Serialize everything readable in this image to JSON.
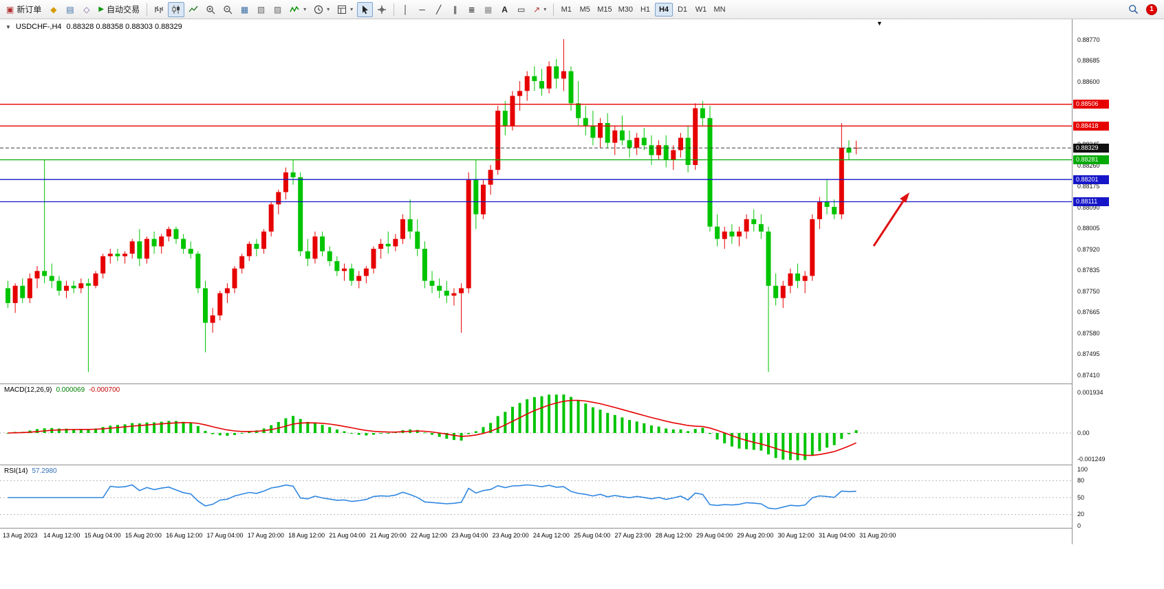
{
  "toolbar": {
    "new_order_label": "新订单",
    "auto_trading_label": "自动交易",
    "timeframes": [
      "M1",
      "M5",
      "M15",
      "M30",
      "H1",
      "H4",
      "D1",
      "W1",
      "MN"
    ],
    "active_timeframe": "H4",
    "notification_count": "1"
  },
  "icons": {
    "collapse": "▼",
    "chart_shift": "▼",
    "dropdown": "▾",
    "new_order": "▣",
    "market_watch": "◆",
    "data_window": "▤",
    "navigator": "◇",
    "play": "▶",
    "tile_windows": "▦",
    "new_chart": "▧",
    "profiles": "▨",
    "crosshair": "+",
    "vline": "│",
    "hline": "─",
    "trendline": "╱",
    "channel": "∥",
    "fibonacci": "≣",
    "grid": "▦",
    "text": "A",
    "label": "▭",
    "arrows": "↗"
  },
  "chart": {
    "symbol_period": "USDCHF-,H4",
    "ohlc_text": "0.88328 0.88358 0.88303 0.88329",
    "ohlc": {
      "open": "0.88328",
      "high": "0.88358",
      "low": "0.88303",
      "close": "0.88329"
    },
    "price_axis": [
      "0.88770",
      "0.88685",
      "0.88600",
      "0.88345",
      "0.88260",
      "0.88175",
      "0.88090",
      "0.88005",
      "0.87920",
      "0.87835",
      "0.87750",
      "0.87665",
      "0.87580",
      "0.87495",
      "0.87410"
    ],
    "levels": [
      {
        "price": "0.88506",
        "color": "#e60000",
        "current": false
      },
      {
        "price": "0.88418",
        "color": "#e60000",
        "current": false
      },
      {
        "price": "0.88329",
        "color": "#3a3a3a",
        "current": true
      },
      {
        "price": "0.88281",
        "color": "#00aa00",
        "current": false
      },
      {
        "price": "0.88201",
        "color": "#1616c8",
        "current": false
      },
      {
        "price": "0.88111",
        "color": "#1616c8",
        "current": false
      }
    ],
    "colors": {
      "bull": "#e60000",
      "bear": "#00c400"
    },
    "time_axis": [
      "13 Aug 2023",
      "14 Aug 12:00",
      "15 Aug 04:00",
      "15 Aug 20:00",
      "16 Aug 12:00",
      "17 Aug 04:00",
      "17 Aug 20:00",
      "18 Aug 12:00",
      "21 Aug 04:00",
      "21 Aug 20:00",
      "22 Aug 12:00",
      "23 Aug 04:00",
      "23 Aug 20:00",
      "24 Aug 12:00",
      "25 Aug 04:00",
      "27 Aug 23:00",
      "28 Aug 12:00",
      "29 Aug 04:00",
      "29 Aug 20:00",
      "30 Aug 12:00",
      "31 Aug 04:00",
      "31 Aug 20:00"
    ],
    "candles": [
      [
        0.8776,
        0.8779,
        0.8768,
        0.877
      ],
      [
        0.877,
        0.8778,
        0.8766,
        0.8777
      ],
      [
        0.8777,
        0.878,
        0.877,
        0.8772
      ],
      [
        0.8772,
        0.8782,
        0.877,
        0.878
      ],
      [
        0.878,
        0.8785,
        0.8776,
        0.8783
      ],
      [
        0.8783,
        0.8828,
        0.8778,
        0.8781
      ],
      [
        0.8781,
        0.8786,
        0.8776,
        0.8779
      ],
      [
        0.8779,
        0.8781,
        0.8773,
        0.8775
      ],
      [
        0.8775,
        0.8779,
        0.8772,
        0.8777
      ],
      [
        0.8777,
        0.8779,
        0.8774,
        0.8776
      ],
      [
        0.8776,
        0.878,
        0.8774,
        0.8778
      ],
      [
        0.8778,
        0.878,
        0.8742,
        0.8777
      ],
      [
        0.8777,
        0.8783,
        0.8776,
        0.8782
      ],
      [
        0.8782,
        0.879,
        0.878,
        0.8789
      ],
      [
        0.8789,
        0.8792,
        0.8786,
        0.879
      ],
      [
        0.879,
        0.8792,
        0.8787,
        0.8789
      ],
      [
        0.8789,
        0.8791,
        0.8786,
        0.879
      ],
      [
        0.879,
        0.8796,
        0.8788,
        0.8795
      ],
      [
        0.8795,
        0.88,
        0.8785,
        0.8788
      ],
      [
        0.8788,
        0.8797,
        0.8786,
        0.8796
      ],
      [
        0.8796,
        0.8799,
        0.879,
        0.8793
      ],
      [
        0.8793,
        0.8798,
        0.879,
        0.8797
      ],
      [
        0.8797,
        0.8801,
        0.8795,
        0.88
      ],
      [
        0.88,
        0.8801,
        0.8794,
        0.8796
      ],
      [
        0.8796,
        0.8798,
        0.879,
        0.8792
      ],
      [
        0.8792,
        0.8795,
        0.8788,
        0.879
      ],
      [
        0.879,
        0.8791,
        0.8774,
        0.8776
      ],
      [
        0.8776,
        0.8779,
        0.875,
        0.8762
      ],
      [
        0.8762,
        0.8768,
        0.8758,
        0.8765
      ],
      [
        0.8765,
        0.8775,
        0.8763,
        0.8774
      ],
      [
        0.8774,
        0.8778,
        0.877,
        0.8776
      ],
      [
        0.8776,
        0.8785,
        0.8774,
        0.8784
      ],
      [
        0.8784,
        0.879,
        0.8782,
        0.8789
      ],
      [
        0.8789,
        0.8795,
        0.8787,
        0.8794
      ],
      [
        0.8794,
        0.8796,
        0.8789,
        0.8792
      ],
      [
        0.8792,
        0.88,
        0.879,
        0.8799
      ],
      [
        0.8799,
        0.8811,
        0.8797,
        0.881
      ],
      [
        0.881,
        0.8816,
        0.8806,
        0.8815
      ],
      [
        0.8815,
        0.8825,
        0.8812,
        0.8823
      ],
      [
        0.8823,
        0.8828,
        0.8818,
        0.8821
      ],
      [
        0.8821,
        0.8823,
        0.8789,
        0.8791
      ],
      [
        0.8791,
        0.8796,
        0.8785,
        0.8788
      ],
      [
        0.8788,
        0.8799,
        0.8786,
        0.8797
      ],
      [
        0.8797,
        0.8799,
        0.8789,
        0.8791
      ],
      [
        0.8791,
        0.8793,
        0.8785,
        0.8787
      ],
      [
        0.8787,
        0.8789,
        0.8781,
        0.8783
      ],
      [
        0.8783,
        0.8786,
        0.8779,
        0.8784
      ],
      [
        0.8784,
        0.8786,
        0.8777,
        0.8779
      ],
      [
        0.8779,
        0.8783,
        0.8776,
        0.8781
      ],
      [
        0.8781,
        0.8785,
        0.8778,
        0.8784
      ],
      [
        0.8784,
        0.8793,
        0.8782,
        0.8792
      ],
      [
        0.8792,
        0.8796,
        0.8788,
        0.8794
      ],
      [
        0.8794,
        0.8799,
        0.879,
        0.8793
      ],
      [
        0.8793,
        0.8798,
        0.8791,
        0.8796
      ],
      [
        0.8796,
        0.8806,
        0.8794,
        0.8804
      ],
      [
        0.8804,
        0.8812,
        0.8796,
        0.8799
      ],
      [
        0.8799,
        0.8804,
        0.8789,
        0.8792
      ],
      [
        0.8792,
        0.8795,
        0.8776,
        0.8779
      ],
      [
        0.8779,
        0.8783,
        0.8774,
        0.8777
      ],
      [
        0.8777,
        0.878,
        0.8772,
        0.8775
      ],
      [
        0.8775,
        0.8779,
        0.877,
        0.8773
      ],
      [
        0.8773,
        0.8776,
        0.8769,
        0.8774
      ],
      [
        0.8774,
        0.8778,
        0.8758,
        0.8776
      ],
      [
        0.8776,
        0.8823,
        0.8774,
        0.882
      ],
      [
        0.882,
        0.8828,
        0.88,
        0.8806
      ],
      [
        0.8806,
        0.882,
        0.8804,
        0.8818
      ],
      [
        0.8818,
        0.8826,
        0.8814,
        0.8824
      ],
      [
        0.8824,
        0.885,
        0.8822,
        0.8848
      ],
      [
        0.8848,
        0.8852,
        0.8838,
        0.8842
      ],
      [
        0.8842,
        0.8856,
        0.884,
        0.8854
      ],
      [
        0.8854,
        0.886,
        0.8848,
        0.8856
      ],
      [
        0.8856,
        0.8864,
        0.8852,
        0.8862
      ],
      [
        0.8862,
        0.8866,
        0.8856,
        0.886
      ],
      [
        0.886,
        0.8865,
        0.8854,
        0.8857
      ],
      [
        0.8857,
        0.8868,
        0.8855,
        0.8866
      ],
      [
        0.8866,
        0.8869,
        0.8857,
        0.8861
      ],
      [
        0.8861,
        0.8877,
        0.8856,
        0.8864
      ],
      [
        0.8864,
        0.8866,
        0.8848,
        0.8851
      ],
      [
        0.8851,
        0.886,
        0.8842,
        0.8845
      ],
      [
        0.8845,
        0.885,
        0.8838,
        0.8842
      ],
      [
        0.8842,
        0.8848,
        0.8834,
        0.8837
      ],
      [
        0.8837,
        0.8845,
        0.8833,
        0.8843
      ],
      [
        0.8843,
        0.8847,
        0.8833,
        0.8835
      ],
      [
        0.8835,
        0.8842,
        0.883,
        0.884
      ],
      [
        0.884,
        0.8846,
        0.8834,
        0.8836
      ],
      [
        0.8836,
        0.884,
        0.8829,
        0.8833
      ],
      [
        0.8833,
        0.8839,
        0.883,
        0.8837
      ],
      [
        0.8837,
        0.8841,
        0.8832,
        0.8834
      ],
      [
        0.8834,
        0.8838,
        0.8826,
        0.883
      ],
      [
        0.883,
        0.8836,
        0.8828,
        0.8834
      ],
      [
        0.8834,
        0.8838,
        0.8825,
        0.8828
      ],
      [
        0.8828,
        0.8834,
        0.8824,
        0.8832
      ],
      [
        0.8832,
        0.8839,
        0.8829,
        0.8837
      ],
      [
        0.8837,
        0.8842,
        0.8823,
        0.8826
      ],
      [
        0.8826,
        0.8851,
        0.8824,
        0.8849
      ],
      [
        0.8849,
        0.8852,
        0.8842,
        0.8845
      ],
      [
        0.8845,
        0.885,
        0.8799,
        0.8801
      ],
      [
        0.8801,
        0.8806,
        0.8793,
        0.8796
      ],
      [
        0.8796,
        0.8801,
        0.8792,
        0.8799
      ],
      [
        0.8799,
        0.8802,
        0.8794,
        0.8797
      ],
      [
        0.8797,
        0.8801,
        0.8793,
        0.8799
      ],
      [
        0.8799,
        0.8806,
        0.8796,
        0.8804
      ],
      [
        0.8804,
        0.8808,
        0.8799,
        0.8802
      ],
      [
        0.8802,
        0.8806,
        0.8796,
        0.8799
      ],
      [
        0.8799,
        0.8801,
        0.8742,
        0.8777
      ],
      [
        0.8777,
        0.8782,
        0.8769,
        0.8772
      ],
      [
        0.8772,
        0.8779,
        0.8768,
        0.8777
      ],
      [
        0.8777,
        0.8784,
        0.8774,
        0.8782
      ],
      [
        0.8782,
        0.8786,
        0.8776,
        0.8779
      ],
      [
        0.8779,
        0.8783,
        0.8774,
        0.8781
      ],
      [
        0.8781,
        0.8806,
        0.8779,
        0.8804
      ],
      [
        0.8804,
        0.8813,
        0.88,
        0.8811
      ],
      [
        0.8811,
        0.882,
        0.8806,
        0.8809
      ],
      [
        0.8809,
        0.8812,
        0.8804,
        0.8806
      ],
      [
        0.8806,
        0.8843,
        0.8804,
        0.8833
      ],
      [
        0.8833,
        0.8836,
        0.8828,
        0.8831
      ],
      [
        0.88328,
        0.88358,
        0.88303,
        0.88329
      ]
    ]
  },
  "macd": {
    "label": "MACD(12,26,9)",
    "value_main": "0.000069",
    "value_signal": "-0.000700",
    "scale": [
      "0.001934",
      "0.00",
      "-0.001249"
    ],
    "hist_color": "#00c400",
    "signal_color": "#e60000"
  },
  "rsi": {
    "label": "RSI(14)",
    "value": "57.2980",
    "scale": [
      "100",
      "80",
      "50",
      "20",
      "0"
    ],
    "level_lines": [
      80,
      50,
      20
    ],
    "line_color": "#2e86e0"
  },
  "annotations": {
    "arrow_color": "#e01010"
  }
}
